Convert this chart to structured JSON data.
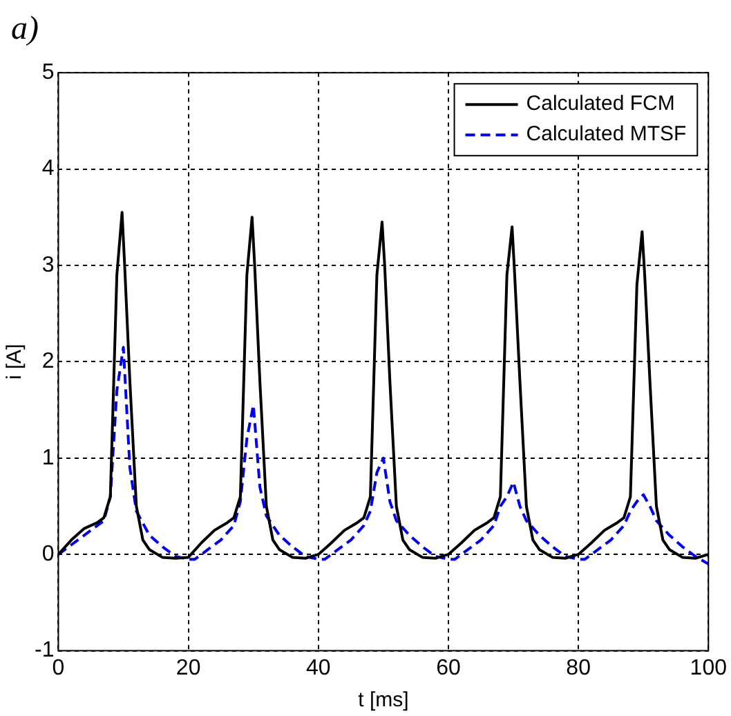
{
  "chart_data": {
    "type": "line",
    "title": "a)",
    "xlabel": "t [ms]",
    "ylabel": "i [A]",
    "xlim": [
      0,
      100
    ],
    "ylim": [
      -1,
      5
    ],
    "xticks": [
      0,
      20,
      40,
      60,
      80,
      100
    ],
    "yticks": [
      -1,
      0,
      1,
      2,
      3,
      4,
      5
    ],
    "grid": true,
    "legend": "top right",
    "marker": "none",
    "series": [
      {
        "name": "Calculated FCM",
        "color": "#000000",
        "line_style": "solid",
        "x": [
          0,
          2,
          4,
          6,
          7,
          8,
          9,
          9.8,
          10.2,
          11,
          12,
          13,
          14,
          16,
          18,
          20,
          22,
          24,
          26,
          27,
          28,
          29,
          29.8,
          30.2,
          31,
          32,
          33,
          34,
          36,
          38,
          40,
          42,
          44,
          46,
          47,
          48,
          49,
          49.8,
          50.2,
          51,
          52,
          53,
          54,
          56,
          58,
          60,
          62,
          64,
          66,
          67,
          68,
          69,
          69.8,
          70.2,
          71,
          72,
          73,
          74,
          76,
          78,
          80,
          82,
          84,
          86,
          87,
          88,
          89,
          89.8,
          90.2,
          91,
          92,
          93,
          94,
          96,
          98,
          100
        ],
        "values": [
          0,
          0.15,
          0.27,
          0.33,
          0.38,
          0.6,
          2.9,
          3.55,
          3.0,
          1.8,
          0.5,
          0.15,
          0.05,
          -0.03,
          -0.04,
          -0.03,
          0.12,
          0.25,
          0.33,
          0.38,
          0.6,
          2.9,
          3.5,
          3.0,
          1.8,
          0.5,
          0.15,
          0.05,
          -0.03,
          -0.04,
          0,
          0.12,
          0.25,
          0.33,
          0.38,
          0.6,
          2.9,
          3.45,
          3.0,
          1.8,
          0.5,
          0.15,
          0.05,
          -0.03,
          -0.04,
          0,
          0.12,
          0.25,
          0.33,
          0.38,
          0.6,
          2.9,
          3.4,
          2.9,
          1.8,
          0.5,
          0.15,
          0.05,
          -0.03,
          -0.04,
          0,
          0.12,
          0.25,
          0.33,
          0.38,
          0.6,
          2.8,
          3.35,
          2.9,
          1.8,
          0.5,
          0.15,
          0.05,
          -0.03,
          -0.04,
          0
        ]
      },
      {
        "name": "Calculated MTSF",
        "color": "#0000ff",
        "line_style": "dashed",
        "x": [
          0,
          2,
          4,
          6,
          7,
          8,
          9,
          10,
          11,
          12,
          14,
          16,
          18,
          20,
          21,
          23,
          25,
          27,
          28,
          29,
          30,
          31,
          32,
          34,
          36,
          38,
          40,
          41,
          43,
          45,
          47,
          48,
          49,
          50,
          51,
          52,
          54,
          56,
          58,
          60,
          61,
          63,
          65,
          67,
          68,
          69,
          70,
          71,
          72,
          74,
          76,
          78,
          80,
          81,
          83,
          85,
          87,
          88,
          89,
          90,
          91,
          92,
          94,
          96,
          98,
          100
        ],
        "values": [
          0,
          0.1,
          0.2,
          0.3,
          0.35,
          0.6,
          1.7,
          2.15,
          0.9,
          0.45,
          0.2,
          0.08,
          -0.02,
          -0.05,
          -0.05,
          0.05,
          0.15,
          0.3,
          0.55,
          1.2,
          1.55,
          0.7,
          0.4,
          0.2,
          0.08,
          -0.02,
          -0.05,
          -0.05,
          0.05,
          0.15,
          0.3,
          0.45,
          0.85,
          1.0,
          0.55,
          0.35,
          0.2,
          0.08,
          -0.02,
          -0.05,
          -0.05,
          0.05,
          0.15,
          0.3,
          0.5,
          0.6,
          0.75,
          0.5,
          0.35,
          0.2,
          0.08,
          -0.02,
          -0.05,
          -0.05,
          0.05,
          0.15,
          0.3,
          0.45,
          0.55,
          0.62,
          0.5,
          0.35,
          0.2,
          0.08,
          -0.02,
          -0.1
        ]
      }
    ]
  }
}
